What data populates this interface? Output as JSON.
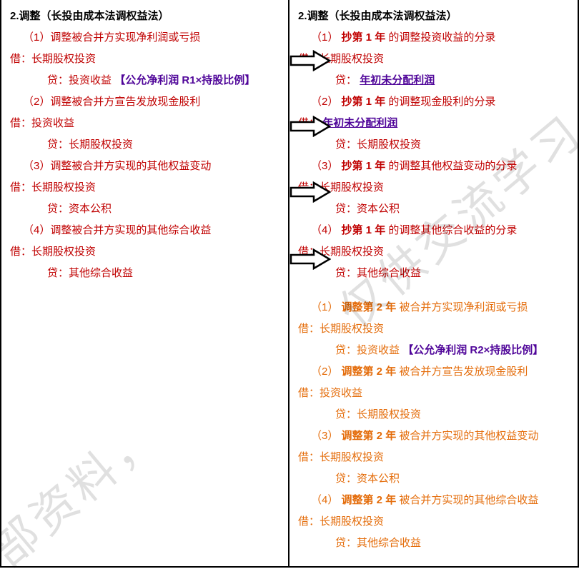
{
  "colors": {
    "red": "#c00000",
    "orange": "#e46c0a",
    "purple": "#4f0599",
    "black": "#000000",
    "watermark": "rgba(0,0,0,0.12)"
  },
  "watermarks": [
    "仅供交流学习",
    "部资料，"
  ],
  "left": {
    "title": "2.调整（长投由成本法调权益法）",
    "items": [
      {
        "head": "（1）调整被合并方实现净利润或亏损",
        "debit": "借：长期股权投资",
        "credit_pre": "贷：投资收益",
        "credit_note": "【公允净利润 R1×持股比例】"
      },
      {
        "head": "（2）调整被合并方宣告发放现金股利",
        "debit": "借：投资收益",
        "credit": "贷：长期股权投资"
      },
      {
        "head": "（3）调整被合并方实现的其他权益变动",
        "debit": "借：长期股权投资",
        "credit": "贷：资本公积"
      },
      {
        "head": "（4）调整被合并方实现的其他综合收益",
        "debit": "借：长期股权投资",
        "credit": "贷：其他综合收益"
      }
    ]
  },
  "right": {
    "title": "2.调整（长投由成本法调权益法）",
    "year1": [
      {
        "lp": "（1）",
        "key": "抄第 1 年",
        "tail": "的调整投资收益的分录",
        "debit": "借：长期股权投资",
        "credit_pre": "贷：",
        "credit_link": "年初未分配利润"
      },
      {
        "lp": "（2）",
        "key": "抄第 1 年",
        "tail": "的调整现金股利的分录",
        "debit_pre": "借：",
        "debit_link": "年初未分配利润",
        "credit": "贷：长期股权投资"
      },
      {
        "lp": "（3）",
        "key": "抄第 1 年",
        "tail": "的调整其他权益变动的分录",
        "debit": "借：长期股权投资",
        "credit": "贷：资本公积"
      },
      {
        "lp": "（4）",
        "key": "抄第 1 年",
        "tail": "的调整其他综合收益的分录",
        "debit": "借：长期股权投资",
        "credit": "贷：其他综合收益"
      }
    ],
    "year2": [
      {
        "lp": "（1）",
        "key": "调整第 2 年",
        "tail": "被合并方实现净利润或亏损",
        "debit": "借：长期股权投资",
        "credit_pre": "贷：投资收益",
        "credit_note": "【公允净利润 R2×持股比例】"
      },
      {
        "lp": "（2）",
        "key": "调整第 2 年",
        "tail": "被合并方宣告发放现金股利",
        "debit": "借：投资收益",
        "credit": "贷：长期股权投资"
      },
      {
        "lp": "（3）",
        "key": "调整第 2 年",
        "tail": "被合并方实现的其他权益变动",
        "debit": "借：长期股权投资",
        "credit": "贷：资本公积"
      },
      {
        "lp": "（4）",
        "key": "调整第 2 年",
        "tail": "被合并方实现的其他综合收益",
        "debit": "借：长期股权投资",
        "credit": "贷：其他综合收益"
      }
    ]
  },
  "arrow_tops": [
    70,
    162,
    254,
    348
  ]
}
